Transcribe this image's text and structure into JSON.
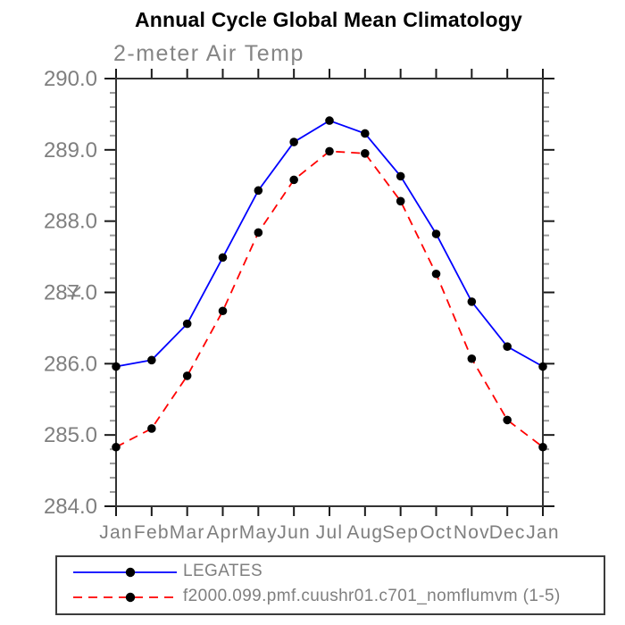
{
  "title": "Annual Cycle Global Mean Climatology",
  "chart_data": {
    "type": "line",
    "title": "Annual Cycle Global Mean Climatology",
    "subtitle": "2-meter Air Temp",
    "xlabel": "",
    "ylabel": "K",
    "categories": [
      "Jan",
      "Feb",
      "Mar",
      "Apr",
      "May",
      "Jun",
      "Jul",
      "Aug",
      "Sep",
      "Oct",
      "Nov",
      "Dec",
      "Jan"
    ],
    "ylim": [
      284.0,
      290.0
    ],
    "y_major_tick_labels": [
      "284.0",
      "285.0",
      "286.0",
      "287.0",
      "288.0",
      "289.0",
      "290.0"
    ],
    "y_major_step": 1.0,
    "y_minor_step": 0.2,
    "grid": false,
    "legend_position": "bottom-left",
    "marker": "filled-circle",
    "marker_color": "#000000",
    "series": [
      {
        "name": "LEGATES",
        "color": "#0000ff",
        "line_style": "solid",
        "values": [
          285.96,
          286.05,
          286.56,
          287.49,
          288.43,
          289.11,
          289.41,
          289.23,
          288.63,
          287.82,
          286.87,
          286.24,
          285.96
        ]
      },
      {
        "name": "f2000.099.pmf.cuushr01.c701_nomflumvm (1-5)",
        "color": "#ff0000",
        "line_style": "dashed",
        "values": [
          284.83,
          285.09,
          285.83,
          286.74,
          287.84,
          288.58,
          288.98,
          288.95,
          288.28,
          287.26,
          286.07,
          285.21,
          284.83
        ]
      }
    ],
    "colors": {
      "axis_frame": "#333333",
      "major_tick": "#1a1a1a",
      "minor_tick": "#9a9a9a",
      "tick_label": "#7f7f7f",
      "subtitle_text": "#858585"
    }
  }
}
